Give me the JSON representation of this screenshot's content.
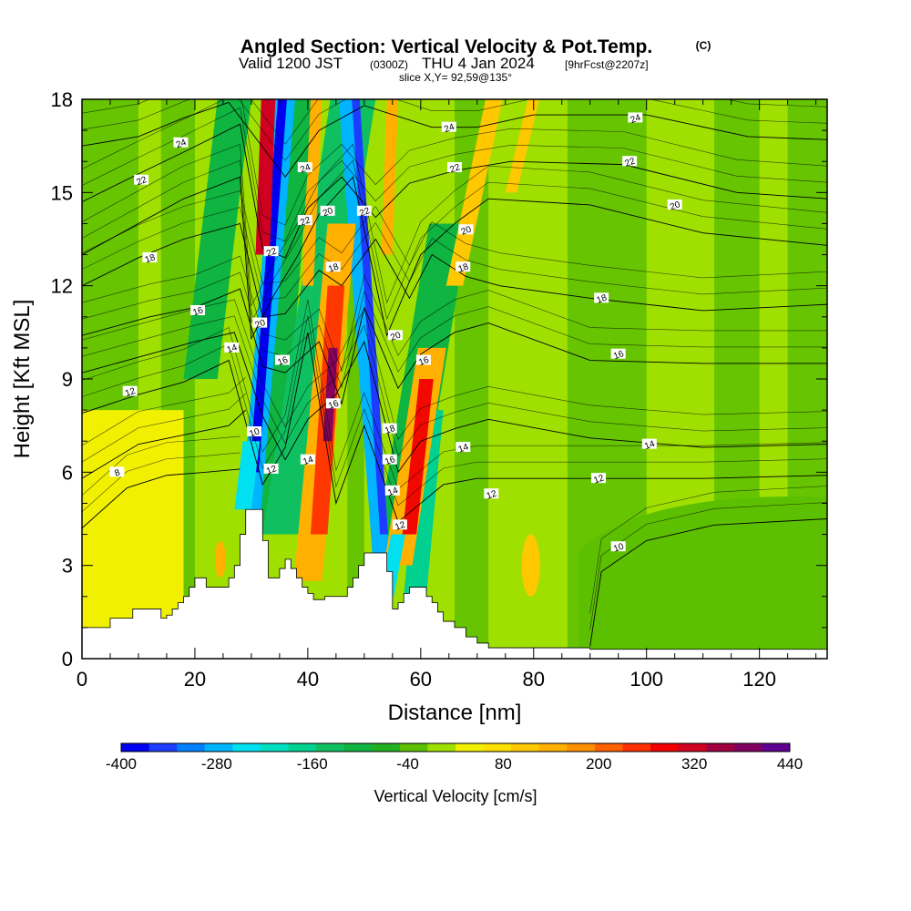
{
  "title": {
    "main": "Angled Section: Vertical Velocity & Pot.Temp.",
    "marker": "(C)",
    "valid_prefix": "Valid 1200 JST",
    "utc": "(0300Z)",
    "date": "THU 4 Jan 2024",
    "forecast": "[9hrFcst@2207z]",
    "slice": "slice X,Y= 92,59@135°"
  },
  "chart_data": {
    "type": "heatmap",
    "xlabel": "Distance [nm]",
    "ylabel": "Height [Kft MSL]",
    "xlim": [
      0,
      132
    ],
    "ylim": [
      0,
      18
    ],
    "x_ticks": [
      "0",
      "20",
      "40",
      "60",
      "80",
      "100",
      "120"
    ],
    "y_ticks": [
      "0",
      "3",
      "6",
      "9",
      "12",
      "15",
      "18"
    ],
    "colorbar": {
      "title": "Vertical Velocity [cm/s]",
      "labels": [
        "-400",
        "-280",
        "-160",
        "-40",
        "80",
        "200",
        "320",
        "440"
      ],
      "min": -400,
      "max": 440,
      "colors": [
        "#0000f0",
        "#1e3cff",
        "#0080ff",
        "#00b4ff",
        "#00e0f0",
        "#00e0c0",
        "#00d090",
        "#10c060",
        "#10b440",
        "#20b020",
        "#5cc000",
        "#a0e000",
        "#f0f000",
        "#ffe000",
        "#ffc800",
        "#ffb000",
        "#ff9000",
        "#ff6000",
        "#ff3000",
        "#f00000",
        "#d00020",
        "#a00040",
        "#800060",
        "#600090"
      ]
    },
    "terrain": [
      [
        0,
        1.0
      ],
      [
        4,
        1.0
      ],
      [
        5,
        1.3
      ],
      [
        8,
        1.3
      ],
      [
        9,
        1.6
      ],
      [
        13,
        1.6
      ],
      [
        14,
        1.3
      ],
      [
        15,
        1.4
      ],
      [
        16,
        1.6
      ],
      [
        17,
        1.8
      ],
      [
        18,
        2.0
      ],
      [
        19,
        2.3
      ],
      [
        20,
        2.6
      ],
      [
        21,
        2.6
      ],
      [
        22,
        2.3
      ],
      [
        25,
        2.3
      ],
      [
        26,
        2.6
      ],
      [
        27,
        3.0
      ],
      [
        28,
        4.0
      ],
      [
        29,
        4.8
      ],
      [
        31,
        4.8
      ],
      [
        32,
        3.8
      ],
      [
        33,
        2.6
      ],
      [
        34,
        2.6
      ],
      [
        35,
        2.9
      ],
      [
        36,
        3.2
      ],
      [
        37,
        2.9
      ],
      [
        38,
        2.6
      ],
      [
        39,
        2.3
      ],
      [
        40,
        2.1
      ],
      [
        41,
        1.9
      ],
      [
        42,
        1.9
      ],
      [
        43,
        2.0
      ],
      [
        46,
        2.0
      ],
      [
        47,
        2.3
      ],
      [
        48,
        2.6
      ],
      [
        49,
        3.0
      ],
      [
        50,
        3.4
      ],
      [
        53,
        3.4
      ],
      [
        54,
        2.8
      ],
      [
        55,
        1.6
      ],
      [
        56,
        1.8
      ],
      [
        57,
        2.1
      ],
      [
        58,
        2.3
      ],
      [
        60,
        2.3
      ],
      [
        61,
        2.0
      ],
      [
        62,
        1.8
      ],
      [
        63,
        1.5
      ],
      [
        64,
        1.2
      ],
      [
        66,
        1.0
      ],
      [
        68,
        0.7
      ],
      [
        70,
        0.5
      ],
      [
        72,
        0.35
      ],
      [
        90,
        0.3
      ],
      [
        132,
        0.3
      ]
    ],
    "series": [
      {
        "name": "8",
        "values": [
          [
            0,
            4.2
          ],
          [
            8,
            5.5
          ],
          [
            15,
            5.9
          ],
          [
            22,
            6.0
          ],
          [
            28,
            6.1
          ]
        ]
      },
      {
        "name": "10",
        "values": [
          [
            0,
            5.8
          ],
          [
            10,
            6.9
          ],
          [
            18,
            7.2
          ],
          [
            26,
            7.5
          ],
          [
            29,
            8.0
          ]
        ]
      },
      {
        "name": "12",
        "values": [
          [
            0,
            7.9
          ],
          [
            10,
            8.5
          ],
          [
            18,
            8.9
          ],
          [
            26,
            9.6
          ],
          [
            32,
            5.6
          ],
          [
            36,
            6.8
          ],
          [
            40,
            10.5
          ],
          [
            45,
            5.0
          ],
          [
            50,
            7.5
          ],
          [
            56,
            4.4
          ],
          [
            60,
            5.0
          ],
          [
            64,
            5.6
          ],
          [
            70,
            5.8
          ],
          [
            90,
            5.8
          ],
          [
            110,
            5.8
          ],
          [
            132,
            5.9
          ]
        ]
      },
      {
        "name": "10b",
        "values": [
          [
            90,
            0.4
          ],
          [
            92,
            2.8
          ],
          [
            100,
            3.8
          ],
          [
            112,
            4.3
          ],
          [
            132,
            4.5
          ]
        ]
      },
      {
        "name": "14",
        "values": [
          [
            0,
            9.2
          ],
          [
            12,
            9.8
          ],
          [
            20,
            10.2
          ],
          [
            27,
            10.5
          ],
          [
            32,
            7.8
          ],
          [
            36,
            6.4
          ],
          [
            40,
            7.7
          ],
          [
            45,
            8.5
          ],
          [
            50,
            10.2
          ],
          [
            56,
            6.0
          ],
          [
            60,
            7.0
          ],
          [
            66,
            7.4
          ],
          [
            72,
            7.7
          ],
          [
            90,
            7.1
          ],
          [
            110,
            6.8
          ],
          [
            132,
            6.9
          ]
        ]
      },
      {
        "name": "16",
        "values": [
          [
            0,
            10.4
          ],
          [
            12,
            11.0
          ],
          [
            20,
            11.3
          ],
          [
            28,
            11.9
          ],
          [
            32,
            9.4
          ],
          [
            36,
            9.2
          ],
          [
            42,
            10.2
          ],
          [
            46,
            8.2
          ],
          [
            50,
            11.3
          ],
          [
            56,
            8.7
          ],
          [
            60,
            9.8
          ],
          [
            66,
            10.5
          ],
          [
            72,
            10.8
          ],
          [
            90,
            9.6
          ],
          [
            110,
            9.5
          ],
          [
            132,
            9.5
          ]
        ]
      },
      {
        "name": "18",
        "values": [
          [
            0,
            12.0
          ],
          [
            10,
            12.9
          ],
          [
            18,
            13.5
          ],
          [
            28,
            14.0
          ],
          [
            32,
            11.0
          ],
          [
            36,
            11.1
          ],
          [
            42,
            12.5
          ],
          [
            46,
            12.0
          ],
          [
            52,
            13.5
          ],
          [
            58,
            11.6
          ],
          [
            62,
            13.0
          ],
          [
            68,
            12.3
          ],
          [
            74,
            12.0
          ],
          [
            90,
            11.6
          ],
          [
            110,
            11.2
          ],
          [
            132,
            11.4
          ]
        ]
      },
      {
        "name": "20",
        "values": [
          [
            0,
            13.0
          ],
          [
            10,
            14.0
          ],
          [
            18,
            14.8
          ],
          [
            28,
            15.5
          ],
          [
            30,
            10.3
          ],
          [
            34,
            11.7
          ],
          [
            38,
            12.9
          ],
          [
            42,
            14.3
          ],
          [
            48,
            15.5
          ],
          [
            54,
            10.4
          ],
          [
            60,
            13.0
          ],
          [
            66,
            14.0
          ],
          [
            72,
            14.8
          ],
          [
            90,
            14.6
          ],
          [
            110,
            13.7
          ],
          [
            132,
            13.3
          ]
        ]
      },
      {
        "name": "22",
        "values": [
          [
            0,
            14.7
          ],
          [
            10,
            15.6
          ],
          [
            18,
            16.3
          ],
          [
            28,
            17.2
          ],
          [
            32,
            13.2
          ],
          [
            36,
            12.9
          ],
          [
            40,
            14.5
          ],
          [
            46,
            15.5
          ],
          [
            52,
            14.2
          ],
          [
            58,
            15.3
          ],
          [
            66,
            15.7
          ],
          [
            76,
            16.0
          ],
          [
            96,
            15.9
          ],
          [
            116,
            15.0
          ],
          [
            132,
            14.8
          ]
        ]
      },
      {
        "name": "24",
        "values": [
          [
            0,
            16.5
          ],
          [
            10,
            16.8
          ],
          [
            18,
            17.4
          ],
          [
            26,
            17.9
          ],
          [
            36,
            15.5
          ],
          [
            42,
            17.0
          ],
          [
            50,
            17.8
          ],
          [
            62,
            17.1
          ],
          [
            70,
            17.1
          ],
          [
            80,
            17.5
          ],
          [
            100,
            17.5
          ],
          [
            118,
            16.8
          ],
          [
            132,
            16.7
          ]
        ]
      }
    ],
    "contour_labels": [
      {
        "text": "8",
        "x": 6.2,
        "y": 6.0
      },
      {
        "text": "10",
        "x": 30.5,
        "y": 7.3
      },
      {
        "text": "12",
        "x": 33.5,
        "y": 6.1
      },
      {
        "text": "12",
        "x": 56.3,
        "y": 4.3
      },
      {
        "text": "12",
        "x": 72.5,
        "y": 5.3
      },
      {
        "text": "12",
        "x": 91.5,
        "y": 5.8
      },
      {
        "text": "10",
        "x": 95,
        "y": 3.6
      },
      {
        "text": "12",
        "x": 8.5,
        "y": 8.6
      },
      {
        "text": "14",
        "x": 26.5,
        "y": 10.0
      },
      {
        "text": "14",
        "x": 40,
        "y": 6.4
      },
      {
        "text": "14",
        "x": 55,
        "y": 5.4
      },
      {
        "text": "14",
        "x": 67.5,
        "y": 6.8
      },
      {
        "text": "14",
        "x": 100.5,
        "y": 6.9
      },
      {
        "text": "16",
        "x": 20.5,
        "y": 11.2
      },
      {
        "text": "16",
        "x": 35.5,
        "y": 9.6
      },
      {
        "text": "16",
        "x": 44.5,
        "y": 8.2
      },
      {
        "text": "16",
        "x": 54.5,
        "y": 6.4
      },
      {
        "text": "16",
        "x": 60.5,
        "y": 9.6
      },
      {
        "text": "16",
        "x": 95,
        "y": 9.8
      },
      {
        "text": "18",
        "x": 12,
        "y": 12.9
      },
      {
        "text": "18",
        "x": 44.5,
        "y": 12.6
      },
      {
        "text": "18",
        "x": 54.5,
        "y": 7.4
      },
      {
        "text": "18",
        "x": 67.5,
        "y": 12.6
      },
      {
        "text": "18",
        "x": 92,
        "y": 11.6
      },
      {
        "text": "20",
        "x": 31.5,
        "y": 10.8
      },
      {
        "text": "20",
        "x": 43.5,
        "y": 14.4
      },
      {
        "text": "20",
        "x": 55.5,
        "y": 10.4
      },
      {
        "text": "20",
        "x": 68,
        "y": 13.8
      },
      {
        "text": "20",
        "x": 105,
        "y": 14.6
      },
      {
        "text": "22",
        "x": 10.5,
        "y": 15.4
      },
      {
        "text": "22",
        "x": 33.5,
        "y": 13.1
      },
      {
        "text": "22",
        "x": 39.5,
        "y": 14.1
      },
      {
        "text": "22",
        "x": 50,
        "y": 14.4
      },
      {
        "text": "22",
        "x": 66,
        "y": 15.8
      },
      {
        "text": "22",
        "x": 97,
        "y": 16.0
      },
      {
        "text": "24",
        "x": 17.5,
        "y": 16.6
      },
      {
        "text": "24",
        "x": 39.5,
        "y": 15.8
      },
      {
        "text": "24",
        "x": 65,
        "y": 17.1
      },
      {
        "text": "24",
        "x": 98,
        "y": 17.4
      }
    ]
  }
}
